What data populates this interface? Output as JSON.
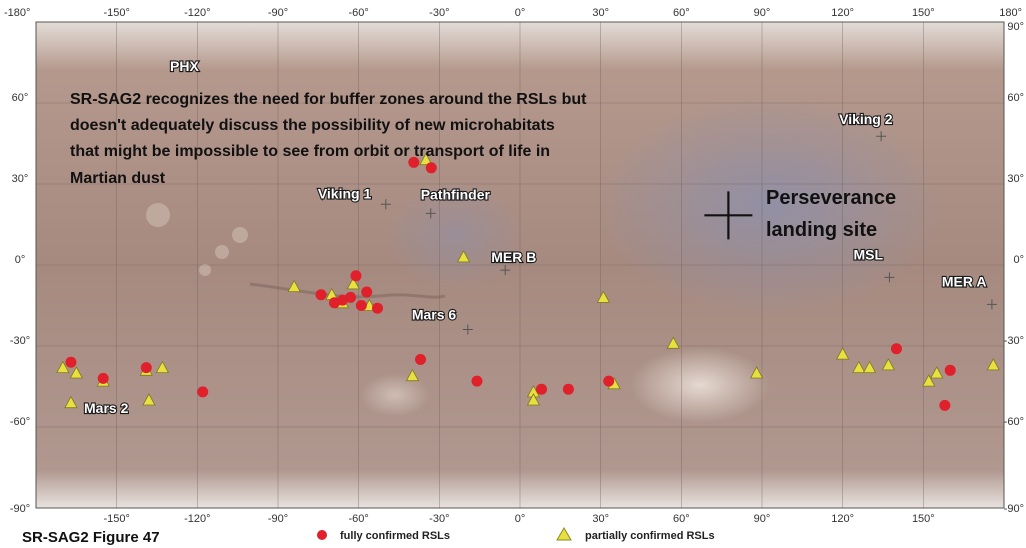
{
  "map": {
    "lon_range": [
      -180,
      180
    ],
    "lat_range": [
      -90,
      90
    ],
    "graticule_step": 30,
    "top_ticks": [
      "-180°",
      "-150°",
      "-120°",
      "-90°",
      "-60°",
      "-30°",
      "0°",
      "30°",
      "60°",
      "90°",
      "120°",
      "150°",
      "180°"
    ],
    "bottom_ticks": [
      "-150°",
      "-120°",
      "-90°",
      "-60°",
      "-30°",
      "0°",
      "30°",
      "60°",
      "90°",
      "120°",
      "150°"
    ],
    "left_lat_ticks": [
      "60°",
      "30°",
      "0°",
      "-30°",
      "-60°",
      "-90°"
    ],
    "right_lat_ticks": [
      "90°",
      "60°",
      "30°",
      "0°",
      "-30°",
      "-60°",
      "-90°"
    ]
  },
  "annotation": {
    "lines": [
      "SR-SAG2 recognizes the need for buffer zones around the RSLs but",
      "doesn't adequately discuss the possibility of new microhabitats",
      "that might be impossible to see from orbit or transport of life in",
      "Martian dust"
    ]
  },
  "perseverance": {
    "line1": "Perseverance",
    "line2": "landing site",
    "lon": 77.5,
    "lat": 18.4
  },
  "sites": [
    {
      "label": "PHX",
      "lon": -125.7,
      "lat": 68.2
    },
    {
      "label": "Viking 2",
      "lon": 134.3,
      "lat": 47.7
    },
    {
      "label": "Viking 1",
      "lon": -49.9,
      "lat": 22.5
    },
    {
      "label": "Pathfinder",
      "lon": -33.2,
      "lat": 19.1
    },
    {
      "label": "MER B",
      "lon": -5.5,
      "lat": -1.9
    },
    {
      "label": "MSL",
      "lon": 137.4,
      "lat": -4.6
    },
    {
      "label": "MER A",
      "lon": 175.5,
      "lat": -14.6
    },
    {
      "label": "Mars 6",
      "lon": -19.4,
      "lat": -23.9
    },
    {
      "label": "Mars 2",
      "lon": 47.0,
      "lat": -44.2
    }
  ],
  "fully_confirmed": [
    [
      -39.5,
      38
    ],
    [
      -33,
      36
    ],
    [
      -61,
      -4
    ],
    [
      -57,
      -10
    ],
    [
      -63,
      -12
    ],
    [
      -66,
      -13
    ],
    [
      -74,
      -11
    ],
    [
      -69,
      -14
    ],
    [
      -59,
      -15
    ],
    [
      -53,
      -16
    ],
    [
      -167,
      -36
    ],
    [
      -155,
      -42
    ],
    [
      -139,
      -38
    ],
    [
      -118,
      -47
    ],
    [
      -37,
      -35
    ],
    [
      -16,
      -43
    ],
    [
      8,
      -46
    ],
    [
      18,
      -46
    ],
    [
      33,
      -43
    ],
    [
      140,
      -31
    ],
    [
      160,
      -39
    ],
    [
      158,
      -52
    ]
  ],
  "partially_confirmed": [
    [
      -35,
      39
    ],
    [
      -62,
      -7
    ],
    [
      -84,
      -8
    ],
    [
      -70,
      -11
    ],
    [
      -66,
      -14
    ],
    [
      -56,
      -15
    ],
    [
      -21,
      3
    ],
    [
      -170,
      -38
    ],
    [
      -165,
      -40
    ],
    [
      -155,
      -43
    ],
    [
      -139,
      -39
    ],
    [
      -133,
      -38
    ],
    [
      -138,
      -50
    ],
    [
      -167,
      -51
    ],
    [
      -40,
      -41
    ],
    [
      5,
      -47
    ],
    [
      5,
      -50
    ],
    [
      31,
      -12
    ],
    [
      57,
      -29
    ],
    [
      35,
      -44
    ],
    [
      88,
      -40
    ],
    [
      120,
      -33
    ],
    [
      126,
      -38
    ],
    [
      130,
      -38
    ],
    [
      137,
      -37
    ],
    [
      152,
      -43
    ],
    [
      155,
      -40
    ],
    [
      176,
      -37
    ]
  ],
  "legend": {
    "fully": "fully confirmed RSLs",
    "partially": "partially confirmed RSLs",
    "fully_color": "#e0202a",
    "partially_color": "#e8e040"
  },
  "caption": "SR-SAG2 Figure 47"
}
